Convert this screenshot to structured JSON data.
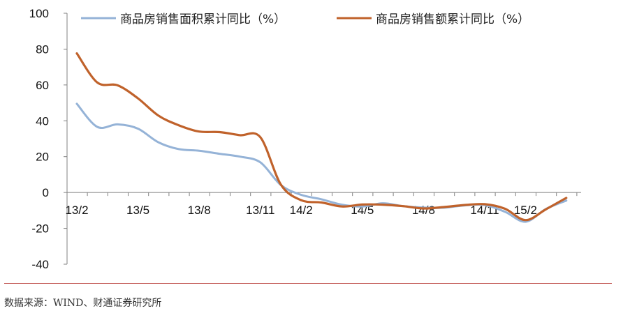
{
  "chart_data": {
    "type": "line",
    "title": "",
    "xlabel": "",
    "ylabel": "",
    "ylim": [
      -40,
      100
    ],
    "yticks": [
      100,
      80,
      60,
      40,
      20,
      0,
      -20,
      -40
    ],
    "ytick_labels": [
      "100",
      "80",
      "60",
      "40",
      "20",
      "0",
      "-20",
      "-40"
    ],
    "x": [
      "13/2",
      "13/3",
      "13/4",
      "13/5",
      "13/6",
      "13/7",
      "13/8",
      "13/9",
      "13/10",
      "13/11",
      "13/12",
      "14/2",
      "14/3",
      "14/4",
      "14/5",
      "14/6",
      "14/7",
      "14/8",
      "14/9",
      "14/10",
      "14/11",
      "14/12",
      "15/2",
      "15/3",
      "15/4"
    ],
    "xtick_labels": [
      "13/2",
      "13/5",
      "13/8",
      "13/11",
      "14/2",
      "14/5",
      "14/8",
      "14/11",
      "15/2"
    ],
    "grid": false,
    "legend": "top",
    "series": [
      {
        "name": "商品房销售面积累计同比（%）",
        "color": "#95b3d7",
        "values": [
          49.5,
          36.6,
          38.0,
          35.6,
          28.0,
          24.2,
          23.3,
          21.6,
          20.0,
          16.8,
          4.2,
          -1.3,
          -3.8,
          -6.8,
          -7.8,
          -6.0,
          -7.6,
          -8.4,
          -8.5,
          -7.2,
          -7.0,
          -10.8,
          -16.3,
          -9.2,
          -4.5
        ]
      },
      {
        "name": "商品房销售额累计同比（%）",
        "color": "#c0622b",
        "values": [
          77.6,
          61.4,
          59.8,
          52.5,
          42.9,
          37.5,
          34.0,
          33.7,
          32.0,
          30.8,
          4.5,
          -4.3,
          -5.6,
          -7.8,
          -6.7,
          -6.8,
          -7.6,
          -8.9,
          -8.1,
          -7.0,
          -6.5,
          -9.1,
          -15.4,
          -9.4,
          -3.0
        ]
      }
    ]
  },
  "footer": {
    "source": "数据来源：WIND、财通证券研究所"
  }
}
